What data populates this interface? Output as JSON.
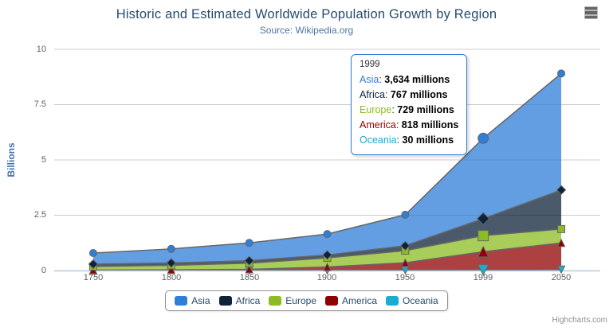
{
  "header": {
    "title": "Historic and Estimated Worldwide Population Growth by Region",
    "subtitle": "Source: Wikipedia.org"
  },
  "credits": "Highcharts.com",
  "palette": {
    "grid": "#cccccc",
    "axis_line": "#c0d0e0",
    "series_outline": "#666666",
    "title_color": "#274b6d",
    "subtitle_color": "#4d759e",
    "axis_label_color": "#606060",
    "yaxis_title_color": "#4572a7",
    "legend_text_color": "#274b6d",
    "fill_opacity": 0.75
  },
  "chart_data": {
    "type": "area",
    "stacking": "normal",
    "title": "Historic and Estimated Worldwide Population Growth by Region",
    "subtitle": "Source: Wikipedia.org",
    "xlabel": "",
    "ylabel": "Billions",
    "ylim": [
      0,
      10
    ],
    "yticks": [
      0,
      2.5,
      5,
      7.5,
      10
    ],
    "grid": "horizontal",
    "legend_position": "bottom",
    "values_unit": "millions",
    "categories": [
      "1750",
      "1800",
      "1850",
      "1900",
      "1950",
      "1999",
      "2050"
    ],
    "series": [
      {
        "name": "Asia",
        "color": "#2f7ed8",
        "marker": "circle",
        "values": [
          502,
          635,
          809,
          947,
          1402,
          3634,
          5268
        ]
      },
      {
        "name": "Africa",
        "color": "#0d233a",
        "marker": "diamond",
        "values": [
          106,
          107,
          111,
          133,
          221,
          767,
          1766
        ]
      },
      {
        "name": "Europe",
        "color": "#8bbc21",
        "marker": "square",
        "values": [
          163,
          203,
          276,
          408,
          547,
          729,
          628
        ]
      },
      {
        "name": "America",
        "color": "#910000",
        "marker": "triangle",
        "values": [
          18,
          31,
          54,
          156,
          339,
          818,
          1201
        ]
      },
      {
        "name": "Oceania",
        "color": "#1aadce",
        "marker": "triangle-down",
        "values": [
          2,
          2,
          2,
          6,
          13,
          30,
          46
        ]
      }
    ],
    "hover_category_index": 5
  },
  "tooltip": {
    "header": "1999",
    "separator": ": ",
    "suffix": " millions",
    "border_color": "#2f7ed8",
    "rows": [
      {
        "name": "Asia",
        "value": "3,634",
        "color": "#2f7ed8"
      },
      {
        "name": "Africa",
        "value": "767",
        "color": "#0d233a"
      },
      {
        "name": "Europe",
        "value": "729",
        "color": "#8bbc21"
      },
      {
        "name": "America",
        "value": "818",
        "color": "#910000"
      },
      {
        "name": "Oceania",
        "value": "30",
        "color": "#1aadce"
      }
    ]
  }
}
